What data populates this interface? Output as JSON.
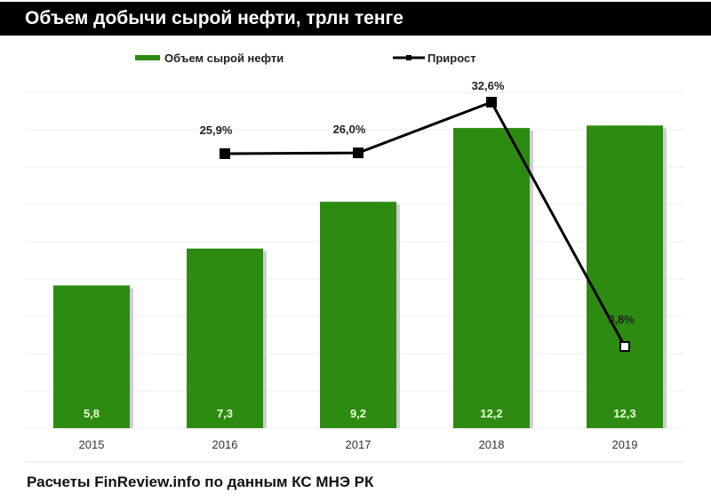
{
  "chart_data": {
    "type": "bar+line",
    "title": "Объем добычи сырой нефти, трлн тенге",
    "categories": [
      "2015",
      "2016",
      "2017",
      "2018",
      "2019"
    ],
    "series": [
      {
        "name": "Объем сырой нефти",
        "type": "bar",
        "values": [
          5.8,
          7.3,
          9.2,
          12.2,
          12.3
        ],
        "labels": [
          "5,8",
          "7,3",
          "9,2",
          "12,2",
          "12,3"
        ],
        "color": "#2e8b12"
      },
      {
        "name": "Прирост",
        "type": "line",
        "values": [
          null,
          25.9,
          26.0,
          32.6,
          0.8
        ],
        "labels": [
          "",
          "25,9%",
          "26,0%",
          "32,6%",
          "0,8%"
        ],
        "color": "#000000"
      }
    ],
    "legend": "top",
    "grid": true
  },
  "footer": "Расчеты FinReview.info по данным КС МНЭ РК"
}
